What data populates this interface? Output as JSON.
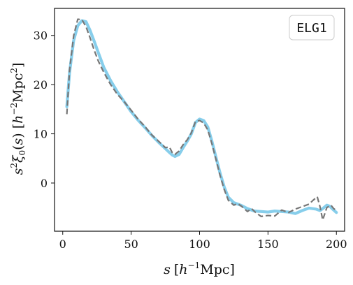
{
  "chart_data": {
    "type": "line",
    "title": "",
    "xlabel": "s [h⁻¹Mpc]",
    "ylabel": "s²ξ₀(s) [h⁻²Mpc²]",
    "xlim": [
      -6,
      206
    ],
    "ylim": [
      -9.8,
      35.5
    ],
    "xticks": [
      0,
      50,
      100,
      150,
      200
    ],
    "yticks": [
      0,
      10,
      20,
      30
    ],
    "grid": false,
    "legend": {
      "position": "top-right",
      "entries": [
        "ELG1"
      ]
    },
    "series": [
      {
        "name": "ELG1",
        "color": "#87CEEB",
        "style": "solid",
        "x": [
          3,
          5,
          8,
          11,
          14,
          17,
          20,
          23,
          26,
          30,
          35,
          40,
          45,
          50,
          55,
          60,
          65,
          70,
          75,
          78,
          80,
          82,
          85,
          88,
          91,
          94,
          97,
          100,
          103,
          106,
          109,
          112,
          115,
          118,
          121,
          125,
          130,
          135,
          140,
          145,
          150,
          155,
          160,
          165,
          170,
          175,
          180,
          185,
          188,
          190,
          193,
          195,
          198,
          200
        ],
        "y": [
          15.5,
          22.5,
          29.0,
          32.0,
          33.0,
          32.8,
          31.0,
          28.8,
          26.5,
          23.5,
          20.8,
          18.5,
          16.5,
          14.5,
          12.8,
          11.3,
          9.7,
          8.3,
          7.0,
          6.2,
          5.7,
          5.4,
          5.8,
          7.2,
          8.5,
          10.0,
          12.3,
          13.0,
          12.7,
          11.4,
          8.5,
          5.2,
          2.0,
          -0.8,
          -2.9,
          -4.0,
          -4.5,
          -5.2,
          -5.7,
          -5.8,
          -5.9,
          -5.7,
          -5.8,
          -5.9,
          -6.2,
          -5.6,
          -5.1,
          -5.3,
          -5.6,
          -5.2,
          -4.5,
          -4.7,
          -5.5,
          -6.0
        ]
      },
      {
        "name": "",
        "color": "#777777",
        "style": "dashed",
        "x": [
          3,
          5,
          8,
          11,
          14,
          17,
          20,
          23,
          26,
          30,
          35,
          40,
          45,
          50,
          55,
          60,
          65,
          70,
          75,
          78,
          80,
          82,
          85,
          88,
          91,
          94,
          97,
          100,
          103,
          106,
          109,
          112,
          115,
          118,
          121,
          125,
          128,
          131,
          135,
          138,
          141,
          145,
          150,
          155,
          160,
          165,
          170,
          175,
          180,
          183,
          186,
          188,
          190,
          193,
          196,
          198,
          200
        ],
        "y": [
          14.0,
          23.0,
          30.0,
          33.3,
          33.2,
          31.8,
          29.5,
          27.0,
          24.8,
          22.5,
          20.0,
          18.0,
          16.5,
          14.8,
          13.0,
          11.5,
          9.8,
          8.5,
          7.2,
          7.3,
          6.2,
          5.8,
          6.5,
          7.8,
          8.8,
          10.2,
          12.5,
          12.7,
          12.2,
          10.8,
          8.0,
          4.8,
          1.5,
          -1.3,
          -3.5,
          -4.5,
          -4.2,
          -4.8,
          -5.8,
          -5.2,
          -6.0,
          -6.8,
          -6.6,
          -6.7,
          -5.5,
          -6.0,
          -5.3,
          -4.8,
          -4.3,
          -3.5,
          -2.8,
          -4.8,
          -7.5,
          -5.0,
          -4.5,
          -5.2,
          -5.6
        ]
      }
    ]
  },
  "legend_label": "ELG1"
}
